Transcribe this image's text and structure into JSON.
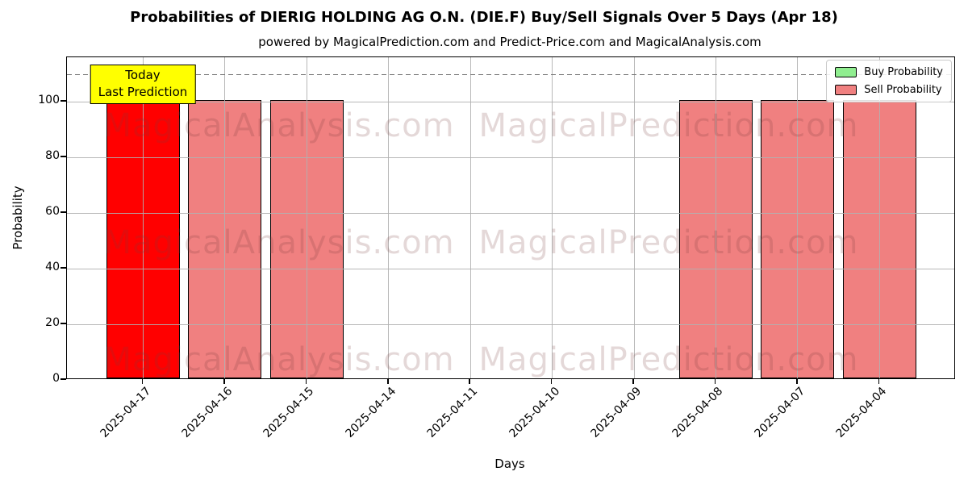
{
  "figure": {
    "title": "Probabilities of DIERIG HOLDING AG O.N. (DIE.F) Buy/Sell Signals Over 5 Days (Apr 18)",
    "subtitle": "powered by MagicalPrediction.com and Predict-Price.com and MagicalAnalysis.com"
  },
  "axes": {
    "xlabel": "Days",
    "ylabel": "Probability"
  },
  "legend": {
    "items": [
      {
        "label": "Buy Probability",
        "color": "#90ee90"
      },
      {
        "label": "Sell Probability",
        "color": "#f08080"
      }
    ]
  },
  "annotation": {
    "line1": "Today",
    "line2": "Last Prediction",
    "bg_color": "#ffff00"
  },
  "watermarks": {
    "left_text": "MagicalAnalysis.com",
    "right_text": "MagicalPrediction.com",
    "color": "rgba(120,60,60,0.2)"
  },
  "chart_data": {
    "type": "bar",
    "title": "Probabilities of DIERIG HOLDING AG O.N. (DIE.F) Buy/Sell Signals Over 5 Days (Apr 18)",
    "subtitle": "powered by MagicalPrediction.com and Predict-Price.com and MagicalAnalysis.com",
    "xlabel": "Days",
    "ylabel": "Probability",
    "categories": [
      "2025-04-17",
      "2025-04-16",
      "2025-04-15",
      "2025-04-14",
      "2025-04-11",
      "2025-04-10",
      "2025-04-09",
      "2025-04-08",
      "2025-04-07",
      "2025-04-04"
    ],
    "series": [
      {
        "name": "Buy Probability",
        "color": "#90ee90",
        "values": [
          0,
          0,
          0,
          0,
          0,
          0,
          0,
          0,
          0,
          0
        ]
      },
      {
        "name": "Sell Probability",
        "color": "#f08080",
        "values": [
          100,
          100,
          100,
          0,
          0,
          0,
          0,
          100,
          100,
          100
        ]
      }
    ],
    "today_index": 0,
    "today_color": "#ff0000",
    "yticks": [
      0,
      20,
      40,
      60,
      80,
      100
    ],
    "ylim": [
      0,
      116
    ],
    "dashed_line_y": 110,
    "grid": true,
    "grid_color": "#b0b0b0",
    "dashed_line_color": "#7a7a7a",
    "legend_position": "upper right",
    "bar_edge_color": "#000000"
  }
}
